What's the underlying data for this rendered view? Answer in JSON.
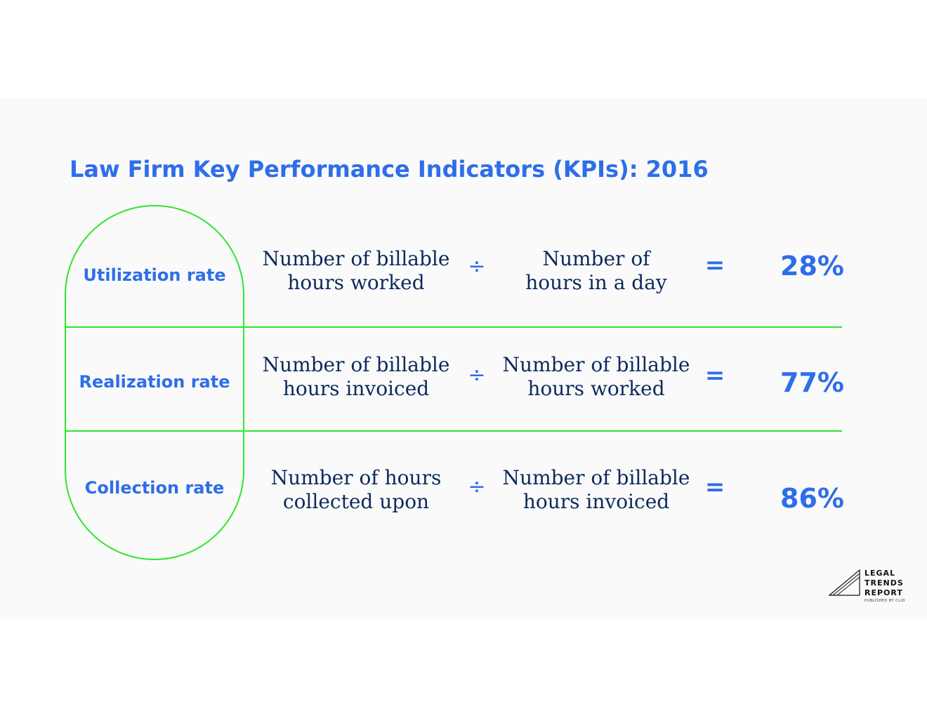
{
  "title": "Law Firm Key Performance Indicators (KPIs): 2016",
  "colors": {
    "accent": "#2e6ee8",
    "outline": "#2ee62e",
    "formula_text": "#0e2a5c",
    "panel": "#fafafa"
  },
  "rows": [
    {
      "label": "Utilization rate",
      "numerator": [
        "Number of billable",
        "hours worked"
      ],
      "divide_symbol": "÷",
      "denominator": [
        "Number of",
        "hours in a day"
      ],
      "equals_symbol": "=",
      "result": "28%"
    },
    {
      "label": "Realization rate",
      "numerator": [
        "Number of billable",
        "hours invoiced"
      ],
      "divide_symbol": "÷",
      "denominator": [
        "Number of billable",
        "hours worked"
      ],
      "equals_symbol": "=",
      "result": "77%"
    },
    {
      "label": "Collection rate",
      "numerator": [
        "Number of hours",
        "collected upon"
      ],
      "divide_symbol": "÷",
      "denominator": [
        "Number of billable",
        "hours invoiced"
      ],
      "equals_symbol": "=",
      "result": "86%"
    }
  ],
  "logo": {
    "lines": [
      "LEGAL",
      "TRENDS",
      "REPORT"
    ],
    "subtitle": "PUBLISHED BY CLIO",
    "icon": "triangle-logo-icon"
  }
}
